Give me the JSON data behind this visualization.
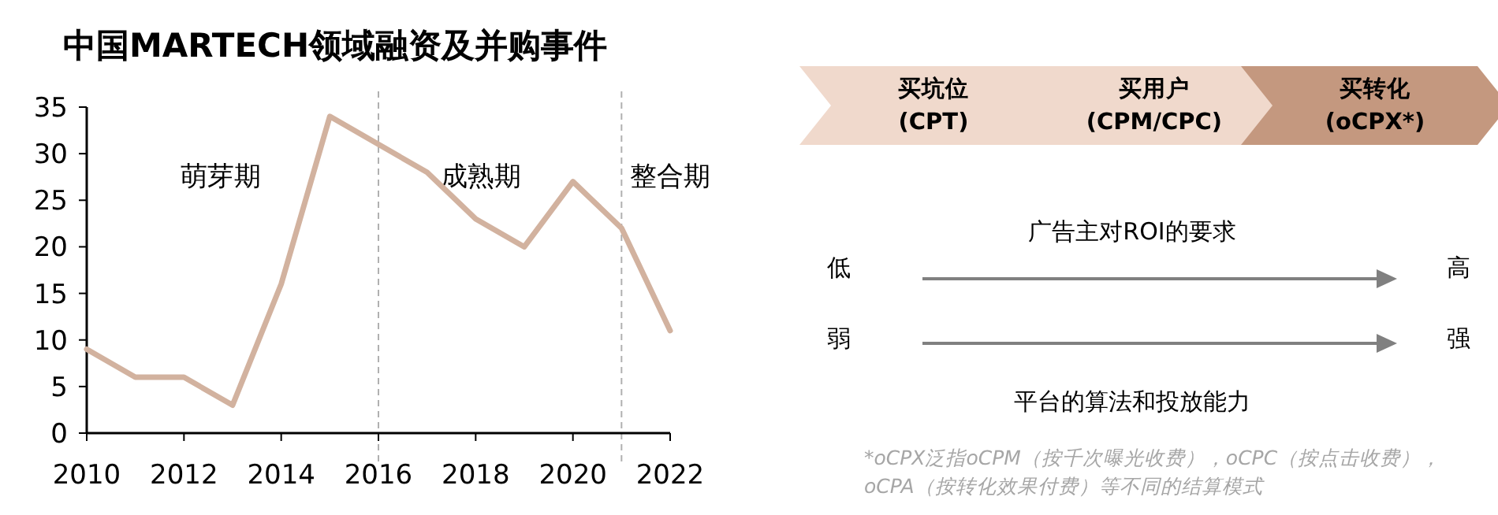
{
  "chart_data": [
    {
      "type": "line",
      "title": "中国MARTECH领域融资及并购事件",
      "x": [
        2010,
        2011,
        2012,
        2013,
        2014,
        2015,
        2016,
        2017,
        2018,
        2019,
        2020,
        2021,
        2022
      ],
      "series": [
        {
          "color": "#d2b29f",
          "values": [
            9,
            6,
            6,
            3,
            16,
            34,
            31,
            28,
            23,
            20,
            27,
            22,
            11
          ]
        }
      ],
      "xlim": [
        2010,
        2022
      ],
      "xticks": [
        2010,
        2012,
        2014,
        2016,
        2018,
        2020,
        2022
      ],
      "ylim": [
        0,
        35
      ],
      "yticks": [
        0,
        5,
        10,
        15,
        20,
        25,
        30,
        35
      ],
      "grid": false,
      "marker": "none",
      "line_style": "solid",
      "ref_lines": [
        {
          "axis": "x",
          "value": 2016,
          "color": "#b0b0b0",
          "line_style": "dashed"
        },
        {
          "axis": "x",
          "value": 2021,
          "color": "#b0b0b0",
          "line_style": "dashed"
        }
      ],
      "annotations": [
        "萌芽期",
        "成熟期",
        "整合期"
      ]
    },
    {
      "type": "other",
      "categories": [
        "买坑位 (CPT)",
        "买用户 (CPM/CPC)",
        "买转化 (oCPX*)"
      ],
      "colors": [
        "#f0d9cc",
        "#f0d9cc",
        "#c4987f"
      ],
      "annotations": [
        "广告主对ROI的要求",
        "低",
        "高",
        "弱",
        "强",
        "平台的算法和投放能力",
        "*oCPX泛指oCPM（按千次曝光收费），oCPC（按点击收费），oCPA（按转化效果付费）等不同的结算模式"
      ]
    }
  ]
}
